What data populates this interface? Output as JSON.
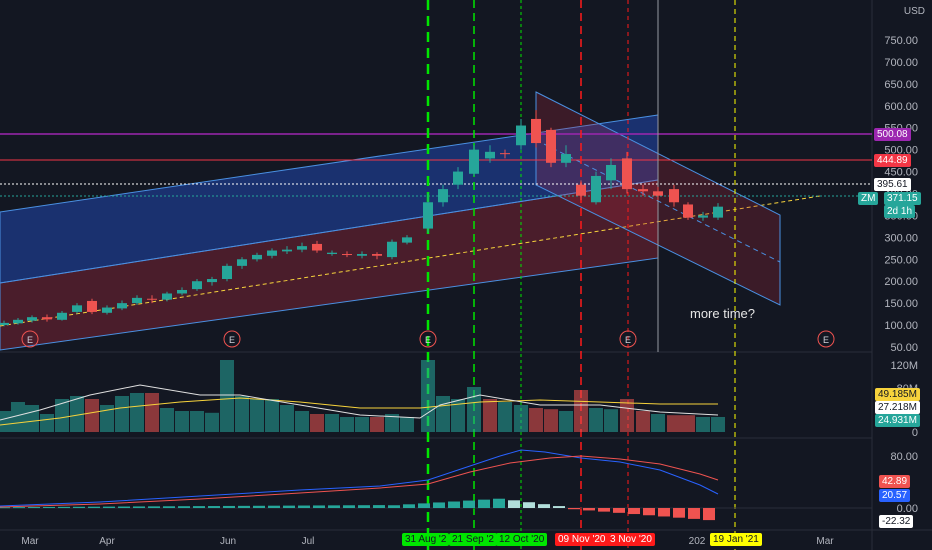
{
  "currency": "USD",
  "price_axis": [
    "750.00",
    "700.00",
    "650.00",
    "600.00",
    "550.00",
    "500.00",
    "450.00",
    "400.00",
    "350.00",
    "300.00",
    "250.00",
    "200.00",
    "150.00",
    "100.00",
    "50.00"
  ],
  "volume_axis": [
    "120M",
    "80M",
    "0"
  ],
  "macd_axis": [
    "80.00",
    "0.00"
  ],
  "time_axis": [
    "Mar",
    "Apr",
    "Jun",
    "Jul",
    "202",
    "Mar"
  ],
  "price_badges": {
    "purple_level": "500.08",
    "red_level": "444.89",
    "dotted_level": "395.61",
    "symbol": "ZM",
    "last_price": "371.15",
    "countdown": "2d 1h"
  },
  "volume_badges": {
    "v1": "49.185M",
    "v2": "27.218M",
    "v3": "24.931M"
  },
  "macd_badges": {
    "m1": "42.89",
    "m2": "20.57",
    "m3": "-22.32"
  },
  "date_tags": {
    "aug": "31 Aug '2",
    "sep": "21 Sep '2",
    "oct": "12 Oct '20",
    "nov9": "09 Nov '20",
    "nov30": "3 Nov '20",
    "jan": "19 Jan '21"
  },
  "earnings_marker": "E",
  "annotation": "more time?",
  "colors": {
    "up": "#26a69a",
    "down": "#ef5350",
    "purple": "#9c27b0",
    "accent": "#2962ff"
  }
}
